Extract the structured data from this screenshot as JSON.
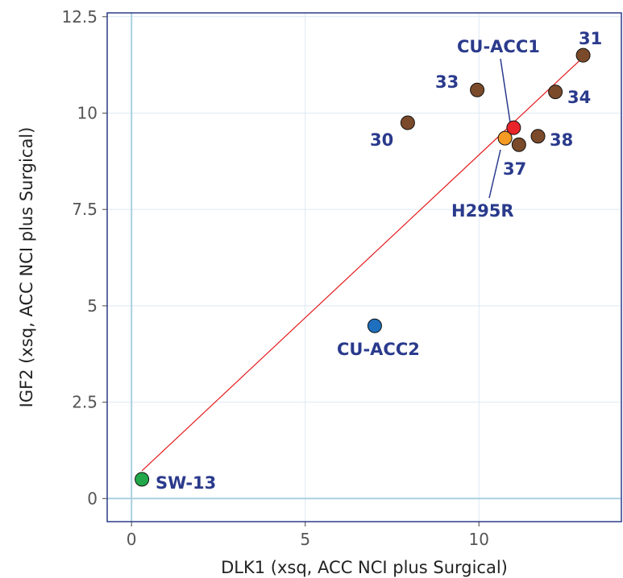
{
  "chart_data": {
    "type": "scatter",
    "xlabel": "DLK1 (xsq, ACC NCI plus Surgical)",
    "ylabel": "IGF2 (xsq, ACC NCI plus Surgical)",
    "xlim": [
      -0.7,
      14.1
    ],
    "ylim": [
      -0.6,
      12.6
    ],
    "xticks": [
      0,
      5,
      10
    ],
    "xtick_labels": [
      "0",
      "5",
      "10"
    ],
    "yticks": [
      0,
      2.5,
      5,
      7.5,
      10,
      12.5
    ],
    "ytick_labels": [
      "0",
      "2.5",
      "5",
      "7.5",
      "10",
      "12.5"
    ],
    "grid": true,
    "points": [
      {
        "label": "31",
        "x": 13.0,
        "y": 11.5,
        "color": "#7b4a2a"
      },
      {
        "label": "33",
        "x": 9.95,
        "y": 10.6,
        "color": "#7b4a2a"
      },
      {
        "label": "34",
        "x": 12.2,
        "y": 10.55,
        "color": "#7b4a2a"
      },
      {
        "label": "30",
        "x": 7.95,
        "y": 9.75,
        "color": "#7b4a2a"
      },
      {
        "label": "38",
        "x": 11.7,
        "y": 9.4,
        "color": "#7b4a2a"
      },
      {
        "label": "37",
        "x": 11.15,
        "y": 9.18,
        "color": "#7b4a2a"
      },
      {
        "label": "CU-ACC1",
        "x": 11.0,
        "y": 9.62,
        "color": "#e8242a"
      },
      {
        "label": "H295R",
        "x": 10.75,
        "y": 9.35,
        "color": "#f59b23"
      },
      {
        "label": "CU-ACC2",
        "x": 7.0,
        "y": 4.48,
        "color": "#1f6fbf"
      },
      {
        "label": "SW-13",
        "x": 0.3,
        "y": 0.5,
        "color": "#22a84a"
      }
    ],
    "fit_line": {
      "x": [
        0.3,
        13.0
      ],
      "y": [
        0.72,
        11.45
      ],
      "color": "#e41a1c"
    }
  }
}
